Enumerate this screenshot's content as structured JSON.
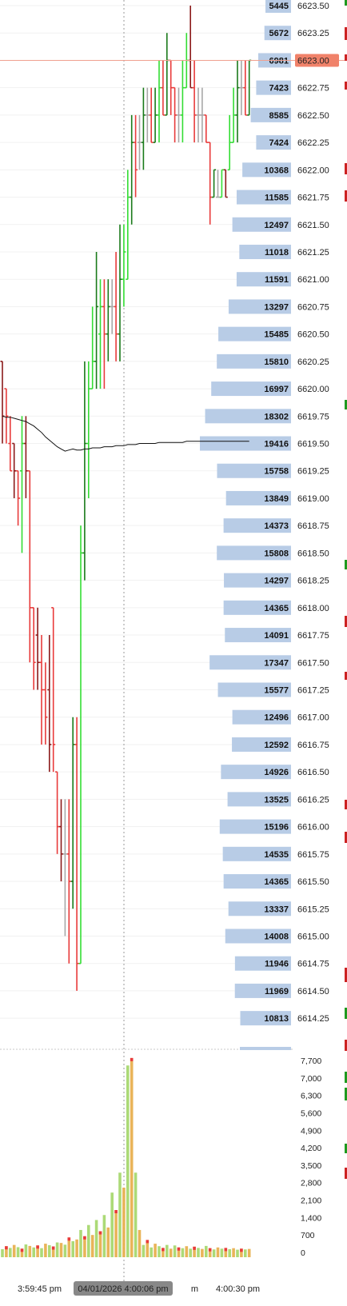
{
  "chart_data": {
    "type": "bar",
    "price_axis": {
      "ticks": [
        "6623.50",
        "6623.25",
        "6623.00",
        "6622.75",
        "6622.50",
        "6622.25",
        "6622.00",
        "6621.75",
        "6621.50",
        "6621.25",
        "6621.00",
        "6620.75",
        "6620.50",
        "6620.25",
        "6620.00",
        "6619.75",
        "6619.50",
        "6619.25",
        "6619.00",
        "6618.75",
        "6618.50",
        "6618.25",
        "6618.00",
        "6617.75",
        "6617.50",
        "6617.25",
        "6617.00",
        "6616.75",
        "6616.50",
        "6616.25",
        "6616.00",
        "6615.75",
        "6615.50",
        "6615.25",
        "6615.00",
        "6614.75",
        "6614.50",
        "6614.25"
      ],
      "last_price": "6623.00",
      "last_price_color": "#f0826a"
    },
    "volume_profile": {
      "prices": [
        6623.5,
        6623.25,
        6623.0,
        6622.75,
        6622.5,
        6622.25,
        6622.0,
        6621.75,
        6621.5,
        6621.25,
        6621.0,
        6620.75,
        6620.5,
        6620.25,
        6620.0,
        6619.75,
        6619.5,
        6619.25,
        6619.0,
        6618.75,
        6618.5,
        6618.25,
        6618.0,
        6617.75,
        6617.5,
        6617.25,
        6617.0,
        6616.75,
        6616.5,
        6616.25,
        6616.0,
        6615.75,
        6615.5,
        6615.25,
        6615.0,
        6614.75,
        6614.5,
        6614.25
      ],
      "labels": [
        "5445",
        "5672",
        "6981",
        "7423",
        "8585",
        "7424",
        "10368",
        "11585",
        "12497",
        "11018",
        "11591",
        "13297",
        "15485",
        "15810",
        "16997",
        "18302",
        "19416",
        "15758",
        "13849",
        "14373",
        "15808",
        "14297",
        "14365",
        "14091",
        "17347",
        "15577",
        "12496",
        "12592",
        "14926",
        "13525",
        "15196",
        "14535",
        "14365",
        "13337",
        "14008",
        "11946",
        "11969",
        "10813"
      ],
      "values": [
        5445,
        5672,
        6981,
        7423,
        8585,
        7424,
        10368,
        11585,
        12497,
        11018,
        11591,
        13297,
        15485,
        15810,
        16997,
        18302,
        19416,
        15758,
        13849,
        14373,
        15808,
        14297,
        14365,
        14091,
        17347,
        15577,
        12496,
        12592,
        14926,
        13525,
        15196,
        14535,
        14365,
        13337,
        14008,
        11946,
        11969,
        10813
      ],
      "color": "#b8cce6"
    },
    "volume_axis": {
      "ticks": [
        "7,700",
        "7,000",
        "6,300",
        "5,600",
        "4,900",
        "4,200",
        "3,500",
        "2,800",
        "2,100",
        "1,400",
        "700",
        "0"
      ]
    },
    "time_axis": {
      "labels": [
        "3:59:45 pm",
        "4:00:30 pm"
      ],
      "partial_label": "m",
      "crosshair_label": "04/01/2026 4:00:06 pm"
    },
    "bars_ohlc": [
      [
        6620.25,
        6620.25,
        6619.5,
        6619.75
      ],
      [
        6620.0,
        6620.0,
        6619.5,
        6619.75
      ],
      [
        6619.5,
        6619.75,
        6619.25,
        6619.25
      ],
      [
        6619.5,
        6619.5,
        6619.0,
        6619.25
      ],
      [
        6619.25,
        6619.25,
        6618.75,
        6619.0
      ],
      [
        6619.25,
        6619.75,
        6618.5,
        6619.5
      ],
      [
        6619.5,
        6619.75,
        6619.0,
        6619.25
      ],
      [
        6619.25,
        6619.25,
        6617.5,
        6618.0
      ],
      [
        6618.0,
        6618.0,
        6617.25,
        6617.5
      ],
      [
        6617.75,
        6618.0,
        6617.25,
        6617.5
      ],
      [
        6617.5,
        6617.75,
        6616.75,
        6617.25
      ],
      [
        6617.25,
        6617.5,
        6616.75,
        6617.0
      ],
      [
        6617.25,
        6617.75,
        6616.5,
        6616.75
      ],
      [
        6618.0,
        6618.0,
        6616.5,
        6616.75
      ],
      [
        6616.5,
        6616.5,
        6615.75,
        6616.0
      ],
      [
        6616.0,
        6616.25,
        6615.5,
        6615.75
      ],
      [
        6615.75,
        6616.25,
        6615.0,
        6615.75
      ],
      [
        6615.75,
        6616.25,
        6614.75,
        6615.5
      ],
      [
        6615.5,
        6617.0,
        6615.25,
        6616.75
      ],
      [
        6616.75,
        6617.0,
        6614.5,
        6614.75
      ],
      [
        6614.75,
        6618.75,
        6614.75,
        6618.5
      ],
      [
        6618.5,
        6620.25,
        6618.25,
        6619.5
      ],
      [
        6619.5,
        6620.25,
        6619.0,
        6620.0
      ],
      [
        6620.0,
        6620.75,
        6620.0,
        6620.25
      ],
      [
        6620.25,
        6621.25,
        6620.0,
        6620.75
      ],
      [
        6620.5,
        6621.0,
        6620.0,
        6620.75
      ],
      [
        6620.75,
        6621.0,
        6620.0,
        6620.5
      ],
      [
        6620.5,
        6621.0,
        6620.25,
        6620.75
      ],
      [
        6620.75,
        6621.0,
        6620.5,
        6620.75
      ],
      [
        6620.75,
        6621.25,
        6620.25,
        6620.5
      ],
      [
        6620.5,
        6621.5,
        6620.25,
        6621.0
      ],
      [
        6621.0,
        6621.5,
        6620.75,
        6621.25
      ],
      [
        6621.0,
        6622.0,
        6621.0,
        6621.75
      ],
      [
        6621.75,
        6622.5,
        6621.5,
        6622.25
      ],
      [
        6622.25,
        6622.5,
        6621.75,
        6622.0
      ],
      [
        6622.25,
        6622.5,
        6622.0,
        6622.25
      ],
      [
        6622.25,
        6622.75,
        6622.0,
        6622.5
      ],
      [
        6622.5,
        6622.75,
        6622.25,
        6622.5
      ],
      [
        6622.5,
        6622.75,
        6622.25,
        6622.25
      ],
      [
        6622.25,
        6622.75,
        6622.25,
        6622.5
      ],
      [
        6622.5,
        6623.0,
        6622.25,
        6622.75
      ],
      [
        6622.75,
        6623.0,
        6622.5,
        6622.5
      ],
      [
        6622.5,
        6623.25,
        6622.5,
        6623.0
      ],
      [
        6623.0,
        6623.0,
        6622.5,
        6622.75
      ],
      [
        6622.75,
        6622.75,
        6622.25,
        6622.5
      ],
      [
        6622.5,
        6622.75,
        6622.25,
        6622.5
      ],
      [
        6622.5,
        6623.0,
        6622.25,
        6622.75
      ],
      [
        6622.75,
        6623.25,
        6622.75,
        6623.0
      ],
      [
        6623.0,
        6623.5,
        6622.75,
        6622.75
      ],
      [
        6622.75,
        6623.0,
        6622.25,
        6622.5
      ],
      [
        6622.5,
        6622.75,
        6622.25,
        6622.5
      ],
      [
        6622.5,
        6622.75,
        6622.25,
        6622.5
      ],
      [
        6622.5,
        6622.5,
        6622.25,
        6622.25
      ],
      [
        6622.25,
        6622.25,
        6621.5,
        6621.75
      ],
      [
        6621.75,
        6622.0,
        6621.75,
        6622.0
      ],
      [
        6621.75,
        6622.0,
        6621.75,
        6621.75
      ],
      [
        6621.75,
        6622.0,
        6621.75,
        6622.0
      ],
      [
        6622.0,
        6622.0,
        6621.75,
        6621.75
      ],
      [
        6622.0,
        6622.5,
        6622.0,
        6622.25
      ],
      [
        6622.25,
        6622.75,
        6622.25,
        6622.5
      ],
      [
        6622.5,
        6623.0,
        6622.25,
        6622.75
      ],
      [
        6622.75,
        6623.0,
        6622.5,
        6622.75
      ],
      [
        6622.75,
        6623.0,
        6622.5,
        6622.5
      ],
      [
        6622.5,
        6623.0,
        6622.5,
        6623.0
      ]
    ],
    "vwap": [
      6619.75,
      6619.74,
      6619.74,
      6619.73,
      6619.72,
      6619.71,
      6619.7,
      6619.68,
      6619.66,
      6619.63,
      6619.6,
      6619.56,
      6619.53,
      6619.5,
      6619.47,
      6619.45,
      6619.43,
      6619.44,
      6619.45,
      6619.44,
      6619.44,
      6619.45,
      6619.45,
      6619.46,
      6619.46,
      6619.46,
      6619.47,
      6619.47,
      6619.47,
      6619.48,
      6619.48,
      6619.48,
      6619.49,
      6619.49,
      6619.49,
      6619.5,
      6619.5,
      6619.5,
      6619.5,
      6619.5,
      6619.51,
      6619.51,
      6619.51,
      6619.51,
      6619.51,
      6619.51,
      6619.51,
      6619.52,
      6619.52,
      6619.52,
      6619.52,
      6619.52,
      6619.52,
      6619.52,
      6619.52,
      6619.52,
      6619.52,
      6619.52,
      6619.52,
      6619.52,
      6619.52,
      6619.52,
      6619.52,
      6619.52
    ],
    "volume": [
      130,
      250,
      180,
      300,
      210,
      150,
      320,
      260,
      200,
      280,
      170,
      350,
      290,
      240,
      400,
      380,
      310,
      600,
      450,
      520,
      900,
      650,
      1100,
      700,
      1300,
      850,
      1500,
      1000,
      2400,
      1700,
      3200,
      2600,
      7500,
      7800,
      3200,
      900,
      300,
      500,
      200,
      350,
      250,
      180,
      300,
      150,
      280,
      200,
      170,
      250,
      150,
      230,
      180,
      140,
      260,
      170,
      120,
      200,
      150,
      180,
      130,
      170,
      110,
      150,
      120,
      140
    ],
    "colors": {
      "up": "#33dd33",
      "down": "#e83a3a",
      "up_dark": "#1a7a1a",
      "down_dark": "#8b1a1a",
      "neutral": "#a8a8a8",
      "vwap": "#111111",
      "current_price_line": "#f0a090",
      "crosshair": "#999999"
    }
  }
}
